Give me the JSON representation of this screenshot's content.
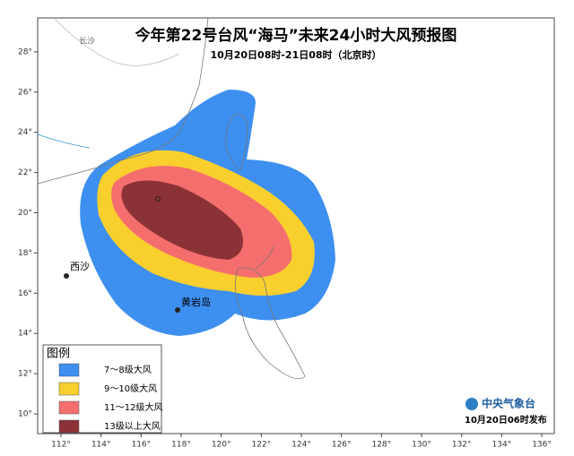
{
  "header": {
    "title": "今年第22号台风“海马”未来24小时大风预报图",
    "subtitle": "10月20日08时-21日08时（北京时）"
  },
  "places": [
    "长沙",
    "西沙",
    "黄岩岛"
  ],
  "legend": {
    "title": "图例",
    "items": [
      {
        "label": "7～8级大风",
        "color": "#3d8ff0"
      },
      {
        "label": "9～10级大风",
        "color": "#f9cf2e"
      },
      {
        "label": "11～12级大风",
        "color": "#f56e6e"
      },
      {
        "label": "13级以上大风",
        "color": "#8b3236"
      }
    ]
  },
  "lon_ticks": [
    "112°",
    "114°",
    "116°",
    "118°",
    "120°",
    "122°",
    "124°",
    "126°",
    "128°",
    "130°",
    "132°",
    "134°",
    "136°"
  ],
  "lat_ticks": [
    "10°",
    "12°",
    "14°",
    "16°",
    "18°",
    "20°",
    "22°",
    "24°",
    "26°",
    "28°"
  ],
  "footer": {
    "agency": "中央气象台",
    "issued": "10月20日06时发布"
  }
}
